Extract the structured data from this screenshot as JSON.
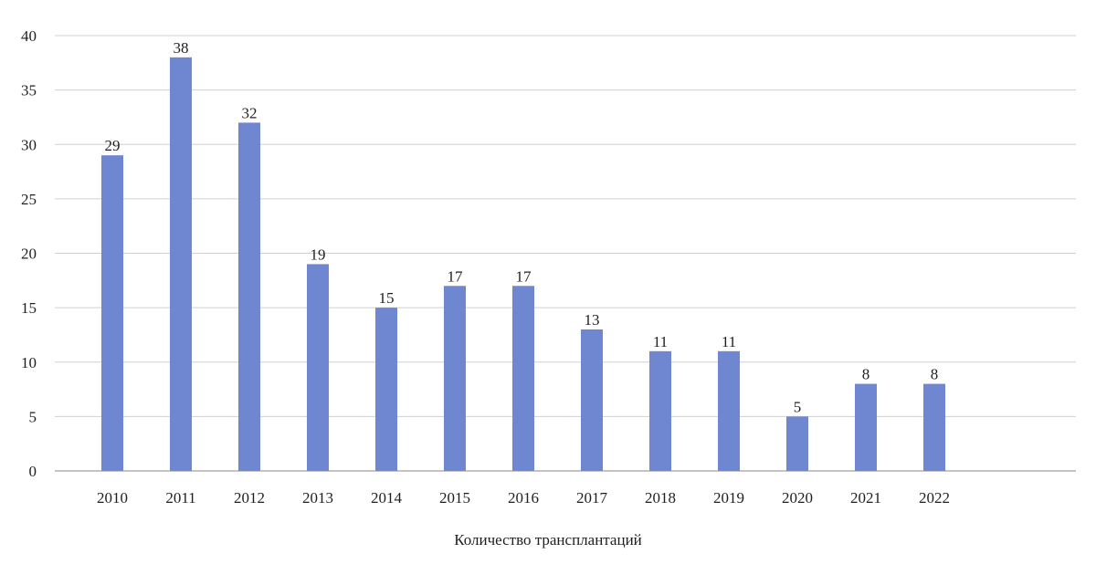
{
  "chart_data": {
    "type": "bar",
    "categories": [
      "2010",
      "2011",
      "2012",
      "2013",
      "2014",
      "2015",
      "2016",
      "2017",
      "2018",
      "2019",
      "2020",
      "2021",
      "2022"
    ],
    "series": [
      {
        "name": "Количество трансплантаций",
        "values": [
          29,
          38,
          32,
          19,
          15,
          17,
          17,
          13,
          11,
          11,
          5,
          8,
          8
        ],
        "color": "#6f86d0"
      }
    ],
    "ylim": [
      0,
      40
    ],
    "yticks": [
      0,
      5,
      10,
      15,
      20,
      25,
      30,
      35,
      40
    ],
    "grid": true,
    "data_labels": true,
    "legend_position": "bottom"
  }
}
